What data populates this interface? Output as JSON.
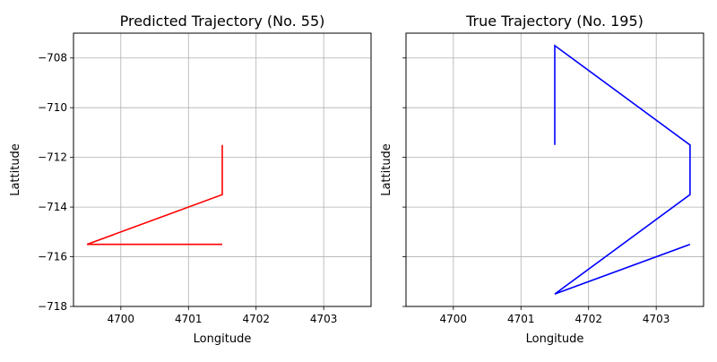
{
  "chart_data": [
    {
      "type": "line",
      "title": "Predicted Trajectory (No. 55)",
      "xlabel": "Longitude",
      "ylabel": "Lattitude",
      "xlim": [
        4699.3,
        4703.7
      ],
      "ylim": [
        -718,
        -707
      ],
      "xticks": [
        4700,
        4701,
        4702,
        4703
      ],
      "xtick_labels": [
        "4700",
        "4701",
        "4702",
        "4703"
      ],
      "yticks": [
        -708,
        -710,
        -712,
        -714,
        -716,
        -718
      ],
      "ytick_labels": [
        "−708",
        "−710",
        "−712",
        "−714",
        "−716",
        "−718"
      ],
      "grid": true,
      "series": [
        {
          "color": "#ff0000",
          "x": [
            4701.5,
            4701.5,
            4699.5,
            4701.5
          ],
          "y": [
            -711.5,
            -713.5,
            -715.5,
            -715.5
          ]
        }
      ]
    },
    {
      "type": "line",
      "title": "True Trajectory (No. 195)",
      "xlabel": "Longitude",
      "ylabel": "Lattitude",
      "xlim": [
        4699.3,
        4703.7
      ],
      "ylim": [
        -718,
        -707
      ],
      "xticks": [
        4700,
        4701,
        4702,
        4703
      ],
      "xtick_labels": [
        "4700",
        "4701",
        "4702",
        "4703"
      ],
      "yticks": [
        -708,
        -710,
        -712,
        -714,
        -716,
        -718
      ],
      "ytick_labels": [],
      "grid": true,
      "series": [
        {
          "color": "#0000ff",
          "x": [
            4701.5,
            4701.5,
            4703.5,
            4703.5,
            4701.5,
            4703.5,
            4701.5
          ],
          "y": [
            -711.5,
            -707.5,
            -711.5,
            -713.5,
            -717.5,
            -715.5,
            -717.5
          ]
        }
      ]
    }
  ]
}
